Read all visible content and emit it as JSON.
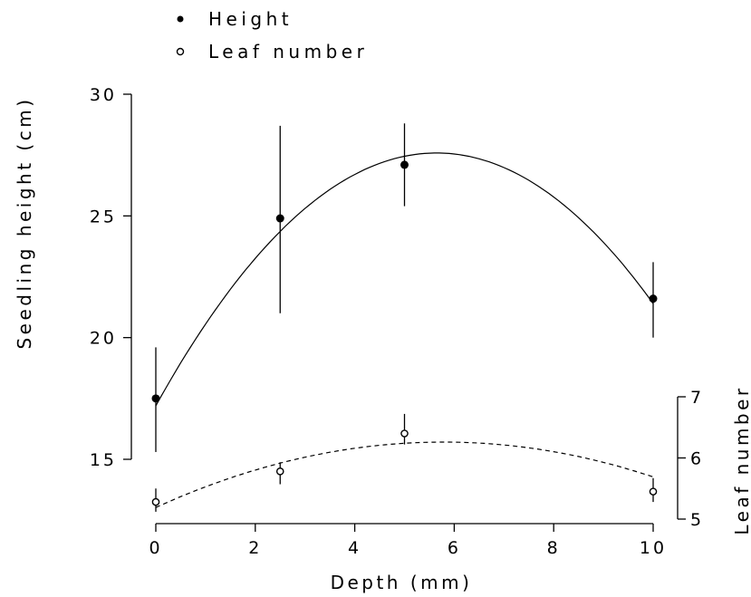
{
  "chart_data": {
    "type": "scatter",
    "legend": {
      "placement": "top-left",
      "entries": [
        {
          "label": "Height",
          "marker": "filled-circle"
        },
        {
          "label": "Leaf number",
          "marker": "open-circle"
        }
      ]
    },
    "x": {
      "label": "Depth (mm)",
      "range": [
        0,
        10
      ],
      "ticks": [
        0,
        2,
        4,
        6,
        8,
        10
      ],
      "tick_labels": [
        "0",
        "2",
        "4",
        "6",
        "8",
        "10"
      ]
    },
    "y_left": {
      "label": "Seedling height (cm)",
      "range": [
        15,
        30
      ],
      "ticks": [
        15,
        20,
        25,
        30
      ],
      "tick_labels": [
        "15",
        "20",
        "25",
        "30"
      ]
    },
    "y_right": {
      "label": "Leaf number",
      "range": [
        5,
        7
      ],
      "ticks": [
        5,
        6,
        7
      ],
      "tick_labels": [
        "5",
        "6",
        "7"
      ]
    },
    "series": [
      {
        "name": "Height",
        "axis": "left",
        "x": [
          0,
          2.5,
          5,
          10
        ],
        "y": [
          17.5,
          24.9,
          27.1,
          21.6
        ],
        "err_low": [
          15.3,
          21.0,
          25.4,
          20.0
        ],
        "err_high": [
          19.6,
          28.7,
          28.8,
          23.1
        ],
        "fit": {
          "kind": "quadratic",
          "line": "solid",
          "coefficients": [
            17.2,
            3.68,
            -0.326
          ]
        }
      },
      {
        "name": "Leaf number",
        "axis": "right",
        "x": [
          0,
          2.5,
          5,
          10
        ],
        "y": [
          5.28,
          5.78,
          6.4,
          5.45
        ],
        "err_low": [
          5.12,
          5.57,
          6.22,
          5.28
        ],
        "err_high": [
          5.5,
          5.93,
          6.72,
          5.67
        ],
        "fit": {
          "kind": "quadratic",
          "line": "dashed",
          "coefficients": [
            5.19,
            0.37,
            -0.032
          ]
        }
      }
    ],
    "colors": {
      "ink": "#000000",
      "background": "#ffffff"
    }
  }
}
